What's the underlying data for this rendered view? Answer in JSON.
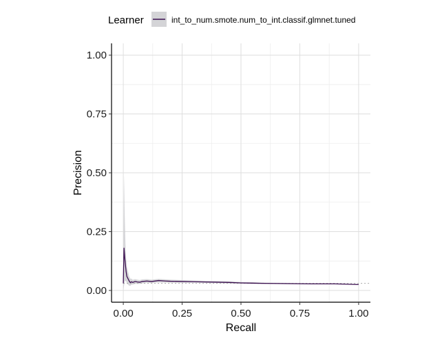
{
  "chart_data": {
    "type": "line",
    "xlabel": "Recall",
    "ylabel": "Precision",
    "xlim": [
      -0.05,
      1.05
    ],
    "ylim": [
      -0.05,
      1.05
    ],
    "xticks": [
      0,
      0.25,
      0.5,
      0.75,
      1
    ],
    "xtick_labels": [
      "0.00",
      "0.25",
      "0.50",
      "0.75",
      "1.00"
    ],
    "yticks": [
      0,
      0.25,
      0.5,
      0.75,
      1
    ],
    "ytick_labels": [
      "0.00",
      "0.25",
      "0.50",
      "0.75",
      "1.00"
    ],
    "grid": true,
    "legend": {
      "title": "Learner",
      "placement": "top",
      "entries": [
        "int_to_num.smote.num_to_int.classif.glmnet.tuned"
      ]
    },
    "baseline": 0.03,
    "series": [
      {
        "name": "int_to_num.smote.num_to_int.classif.glmnet.tuned",
        "color": "#3b0f50",
        "band_color": "#c8c8cc",
        "x": [
          0,
          0.003,
          0.006,
          0.009,
          0.012,
          0.015,
          0.02,
          0.025,
          0.03,
          0.035,
          0.04,
          0.05,
          0.06,
          0.07,
          0.08,
          0.1,
          0.12,
          0.15,
          0.18,
          0.2,
          0.25,
          0.3,
          0.35,
          0.4,
          0.45,
          0.5,
          0.55,
          0.6,
          0.7,
          0.8,
          0.9,
          1.0
        ],
        "y": [
          0.03,
          0.18,
          0.14,
          0.11,
          0.08,
          0.06,
          0.05,
          0.04,
          0.033,
          0.037,
          0.034,
          0.038,
          0.036,
          0.035,
          0.038,
          0.04,
          0.038,
          0.042,
          0.04,
          0.039,
          0.038,
          0.037,
          0.036,
          0.035,
          0.034,
          0.032,
          0.031,
          0.03,
          0.029,
          0.028,
          0.028,
          0.025
        ],
        "lower": [
          0.0,
          0.02,
          0.04,
          0.04,
          0.04,
          0.03,
          0.025,
          0.02,
          0.02,
          0.025,
          0.025,
          0.028,
          0.028,
          0.028,
          0.03,
          0.032,
          0.032,
          0.034,
          0.033,
          0.033,
          0.033,
          0.033,
          0.032,
          0.031,
          0.03,
          0.029,
          0.028,
          0.028,
          0.027,
          0.027,
          0.027,
          0.025
        ],
        "upper": [
          0.1,
          0.49,
          0.32,
          0.2,
          0.14,
          0.1,
          0.08,
          0.06,
          0.05,
          0.05,
          0.045,
          0.048,
          0.046,
          0.044,
          0.047,
          0.048,
          0.046,
          0.049,
          0.047,
          0.046,
          0.044,
          0.042,
          0.041,
          0.04,
          0.039,
          0.036,
          0.035,
          0.033,
          0.032,
          0.03,
          0.029,
          0.026
        ]
      }
    ]
  }
}
